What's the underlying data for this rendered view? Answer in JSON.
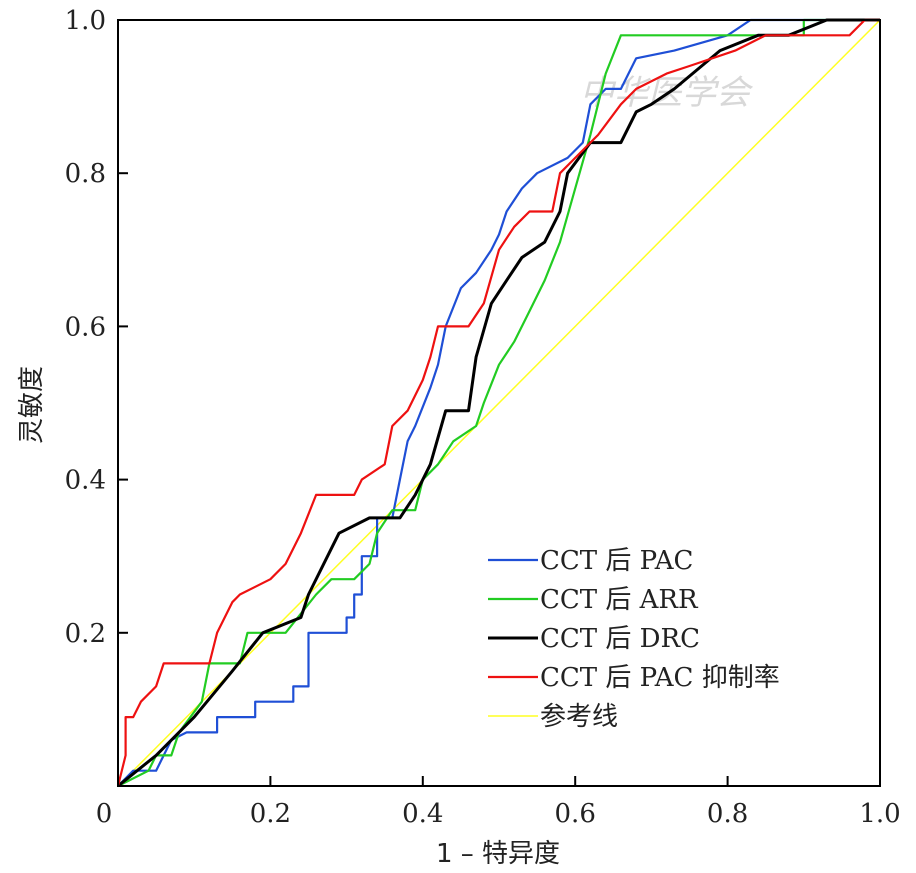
{
  "chart_data": {
    "type": "line",
    "xlabel": "1 – 特异度",
    "ylabel": "灵敏度",
    "xlim": [
      0,
      1
    ],
    "ylim": [
      0,
      1
    ],
    "x_ticks": [
      "0",
      "0.2",
      "0.4",
      "0.6",
      "0.8",
      "1.0"
    ],
    "y_ticks": [
      "0.2",
      "0.4",
      "0.6",
      "0.8",
      "1.0"
    ],
    "legend_position": "bottom-right",
    "watermark": "中华医学会",
    "series": [
      {
        "name": "CCT 后 PAC",
        "color": "#1f4fd6",
        "points": [
          [
            0,
            0
          ],
          [
            0.02,
            0.02
          ],
          [
            0.05,
            0.02
          ],
          [
            0.06,
            0.04
          ],
          [
            0.07,
            0.06
          ],
          [
            0.09,
            0.07
          ],
          [
            0.13,
            0.07
          ],
          [
            0.13,
            0.09
          ],
          [
            0.18,
            0.09
          ],
          [
            0.18,
            0.11
          ],
          [
            0.23,
            0.11
          ],
          [
            0.23,
            0.13
          ],
          [
            0.25,
            0.13
          ],
          [
            0.25,
            0.2
          ],
          [
            0.3,
            0.2
          ],
          [
            0.3,
            0.22
          ],
          [
            0.31,
            0.22
          ],
          [
            0.31,
            0.25
          ],
          [
            0.32,
            0.25
          ],
          [
            0.32,
            0.3
          ],
          [
            0.34,
            0.3
          ],
          [
            0.34,
            0.35
          ],
          [
            0.36,
            0.35
          ],
          [
            0.37,
            0.4
          ],
          [
            0.38,
            0.45
          ],
          [
            0.39,
            0.47
          ],
          [
            0.41,
            0.52
          ],
          [
            0.42,
            0.55
          ],
          [
            0.43,
            0.6
          ],
          [
            0.45,
            0.65
          ],
          [
            0.47,
            0.67
          ],
          [
            0.49,
            0.7
          ],
          [
            0.5,
            0.72
          ],
          [
            0.51,
            0.75
          ],
          [
            0.53,
            0.78
          ],
          [
            0.55,
            0.8
          ],
          [
            0.59,
            0.82
          ],
          [
            0.61,
            0.84
          ],
          [
            0.62,
            0.89
          ],
          [
            0.64,
            0.91
          ],
          [
            0.66,
            0.91
          ],
          [
            0.67,
            0.93
          ],
          [
            0.68,
            0.95
          ],
          [
            0.73,
            0.96
          ],
          [
            0.8,
            0.98
          ],
          [
            0.83,
            1.0
          ],
          [
            1,
            1.0
          ]
        ]
      },
      {
        "name": "CCT 后 ARR",
        "color": "#22cc22",
        "points": [
          [
            0,
            0
          ],
          [
            0.04,
            0.02
          ],
          [
            0.05,
            0.04
          ],
          [
            0.07,
            0.04
          ],
          [
            0.08,
            0.07
          ],
          [
            0.11,
            0.11
          ],
          [
            0.12,
            0.16
          ],
          [
            0.16,
            0.16
          ],
          [
            0.17,
            0.2
          ],
          [
            0.22,
            0.2
          ],
          [
            0.26,
            0.25
          ],
          [
            0.28,
            0.27
          ],
          [
            0.31,
            0.27
          ],
          [
            0.33,
            0.29
          ],
          [
            0.34,
            0.33
          ],
          [
            0.36,
            0.36
          ],
          [
            0.39,
            0.36
          ],
          [
            0.4,
            0.4
          ],
          [
            0.42,
            0.42
          ],
          [
            0.44,
            0.45
          ],
          [
            0.47,
            0.47
          ],
          [
            0.48,
            0.5
          ],
          [
            0.5,
            0.55
          ],
          [
            0.52,
            0.58
          ],
          [
            0.54,
            0.62
          ],
          [
            0.56,
            0.66
          ],
          [
            0.58,
            0.71
          ],
          [
            0.6,
            0.78
          ],
          [
            0.62,
            0.85
          ],
          [
            0.64,
            0.93
          ],
          [
            0.66,
            0.98
          ],
          [
            0.9,
            0.98
          ],
          [
            0.9,
            1.0
          ],
          [
            1,
            1.0
          ]
        ]
      },
      {
        "name": "CCT 后 DRC",
        "color": "#000000",
        "points": [
          [
            0,
            0
          ],
          [
            0.05,
            0.04
          ],
          [
            0.1,
            0.09
          ],
          [
            0.15,
            0.15
          ],
          [
            0.19,
            0.2
          ],
          [
            0.24,
            0.22
          ],
          [
            0.25,
            0.25
          ],
          [
            0.27,
            0.29
          ],
          [
            0.29,
            0.33
          ],
          [
            0.33,
            0.35
          ],
          [
            0.37,
            0.35
          ],
          [
            0.39,
            0.38
          ],
          [
            0.41,
            0.42
          ],
          [
            0.43,
            0.49
          ],
          [
            0.46,
            0.49
          ],
          [
            0.47,
            0.56
          ],
          [
            0.49,
            0.63
          ],
          [
            0.51,
            0.66
          ],
          [
            0.53,
            0.69
          ],
          [
            0.56,
            0.71
          ],
          [
            0.58,
            0.75
          ],
          [
            0.59,
            0.8
          ],
          [
            0.62,
            0.84
          ],
          [
            0.66,
            0.84
          ],
          [
            0.68,
            0.88
          ],
          [
            0.7,
            0.89
          ],
          [
            0.73,
            0.91
          ],
          [
            0.79,
            0.96
          ],
          [
            0.84,
            0.98
          ],
          [
            0.88,
            0.98
          ],
          [
            0.93,
            1.0
          ],
          [
            1,
            1.0
          ]
        ]
      },
      {
        "name": "CCT 后 PAC 抑制率",
        "color": "#ee1111",
        "points": [
          [
            0,
            0
          ],
          [
            0.01,
            0.04
          ],
          [
            0.01,
            0.09
          ],
          [
            0.02,
            0.09
          ],
          [
            0.03,
            0.11
          ],
          [
            0.05,
            0.13
          ],
          [
            0.06,
            0.16
          ],
          [
            0.12,
            0.16
          ],
          [
            0.13,
            0.2
          ],
          [
            0.14,
            0.22
          ],
          [
            0.15,
            0.24
          ],
          [
            0.16,
            0.25
          ],
          [
            0.2,
            0.27
          ],
          [
            0.22,
            0.29
          ],
          [
            0.24,
            0.33
          ],
          [
            0.26,
            0.38
          ],
          [
            0.31,
            0.38
          ],
          [
            0.32,
            0.4
          ],
          [
            0.35,
            0.42
          ],
          [
            0.36,
            0.47
          ],
          [
            0.38,
            0.49
          ],
          [
            0.4,
            0.53
          ],
          [
            0.41,
            0.56
          ],
          [
            0.42,
            0.6
          ],
          [
            0.46,
            0.6
          ],
          [
            0.48,
            0.63
          ],
          [
            0.5,
            0.7
          ],
          [
            0.52,
            0.73
          ],
          [
            0.54,
            0.75
          ],
          [
            0.57,
            0.75
          ],
          [
            0.58,
            0.8
          ],
          [
            0.6,
            0.82
          ],
          [
            0.63,
            0.85
          ],
          [
            0.66,
            0.89
          ],
          [
            0.68,
            0.91
          ],
          [
            0.72,
            0.93
          ],
          [
            0.75,
            0.94
          ],
          [
            0.81,
            0.96
          ],
          [
            0.85,
            0.98
          ],
          [
            0.96,
            0.98
          ],
          [
            0.98,
            1.0
          ],
          [
            1,
            1.0
          ]
        ]
      },
      {
        "name": "参考线",
        "color": "#ffff22",
        "points": [
          [
            0,
            0
          ],
          [
            1,
            1
          ]
        ]
      }
    ]
  }
}
